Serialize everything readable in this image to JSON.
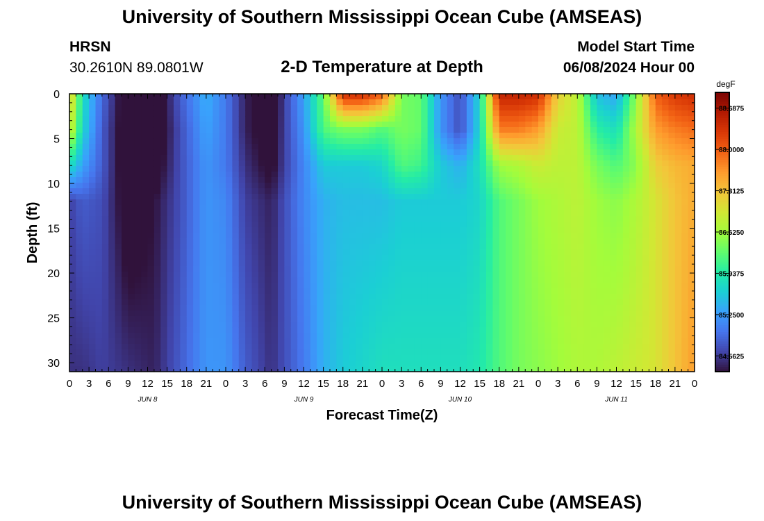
{
  "header": {
    "title": "University of Southern Mississippi Ocean Cube (AMSEAS)",
    "station": "HRSN",
    "coordinates": "30.2610N  89.0801W",
    "subtitle": "2-D Temperature at Depth",
    "model_start_label": "Model Start Time",
    "model_start_value": "06/08/2024 Hour 00"
  },
  "footer": {
    "title": "University of Southern Mississippi Ocean Cube (AMSEAS)"
  },
  "chart_data": {
    "type": "heatmap",
    "xlabel": "Forecast Time(Z)",
    "ylabel": "Depth (ft)",
    "x_tick_labels": [
      "0",
      "3",
      "6",
      "9",
      "12",
      "15",
      "18",
      "21",
      "0",
      "3",
      "6",
      "9",
      "12",
      "15",
      "18",
      "21",
      "0",
      "3",
      "6",
      "9",
      "12",
      "15",
      "18",
      "21",
      "0",
      "3",
      "6",
      "9",
      "12",
      "15",
      "18",
      "21",
      "0"
    ],
    "x_hours": [
      0,
      3,
      6,
      9,
      12,
      15,
      18,
      21,
      24,
      27,
      30,
      33,
      36,
      39,
      42,
      45,
      48,
      51,
      54,
      57,
      60,
      63,
      66,
      69,
      72,
      75,
      78,
      81,
      84,
      87,
      90,
      93,
      96
    ],
    "day_labels": [
      {
        "label": "JUN 8",
        "hour": 12
      },
      {
        "label": "JUN 9",
        "hour": 36
      },
      {
        "label": "JUN 10",
        "hour": 60
      },
      {
        "label": "JUN 11",
        "hour": 84
      }
    ],
    "y_ticks": [
      0,
      5,
      10,
      15,
      20,
      25,
      30
    ],
    "ylim": [
      0,
      31
    ],
    "xlim": [
      0,
      96
    ],
    "y_inverted": true,
    "colorbar": {
      "units": "degF",
      "tick_labels": [
        "88.6875",
        "88.0000",
        "87.3125",
        "86.6250",
        "85.9375",
        "85.2500",
        "84.5625"
      ],
      "tick_values": [
        88.6875,
        88.0,
        87.3125,
        86.625,
        85.9375,
        85.25,
        84.5625
      ],
      "range": [
        84.3,
        88.95
      ],
      "colors": [
        "#30123b",
        "#4145ab",
        "#4675ed",
        "#39a2fc",
        "#1bcfd4",
        "#24eca6",
        "#61fc6c",
        "#a4fc3b",
        "#d1e834",
        "#f3c63a",
        "#fe9b2d",
        "#f36315",
        "#d93806",
        "#b11901",
        "#7a0403"
      ]
    },
    "depth_profile": {
      "depths_ft": [
        0,
        4,
        8,
        12,
        31
      ],
      "hours": [
        0,
        2,
        5,
        9,
        13,
        17,
        21,
        24,
        27,
        31,
        33,
        36,
        39,
        42,
        45,
        48,
        51,
        54,
        57,
        60,
        63,
        66,
        69,
        72,
        75,
        78,
        81,
        84,
        87,
        90,
        93,
        96
      ],
      "values_degF": [
        [
          87.3,
          85.8,
          84.9,
          84.0,
          84.0,
          84.8,
          85.4,
          85.0,
          84.4,
          84.0,
          84.6,
          85.3,
          86.3,
          88.4,
          88.4,
          88.0,
          86.4,
          86.3,
          85.2,
          84.7,
          85.7,
          88.5,
          88.5,
          88.4,
          87.2,
          86.8,
          85.5,
          85.3,
          86.5,
          88.0,
          88.3,
          88.4
        ],
        [
          87.0,
          85.7,
          84.8,
          84.0,
          84.0,
          84.7,
          85.3,
          85.0,
          84.4,
          84.1,
          84.6,
          85.2,
          86.2,
          86.4,
          86.4,
          86.2,
          86.4,
          86.3,
          85.2,
          84.7,
          85.7,
          87.8,
          87.8,
          87.6,
          86.9,
          86.8,
          86.0,
          85.8,
          86.7,
          87.6,
          87.8,
          87.9
        ],
        [
          85.8,
          85.3,
          84.8,
          84.0,
          84.1,
          84.7,
          85.2,
          85.0,
          84.5,
          84.2,
          84.6,
          85.1,
          85.6,
          85.6,
          85.6,
          85.7,
          86.2,
          86.1,
          85.6,
          85.4,
          85.8,
          86.6,
          86.7,
          86.9,
          86.8,
          86.8,
          86.4,
          86.2,
          86.5,
          87.2,
          87.4,
          87.5
        ],
        [
          84.6,
          84.8,
          84.7,
          84.1,
          84.3,
          84.7,
          85.2,
          85.1,
          84.6,
          84.4,
          84.7,
          85.1,
          85.4,
          85.5,
          85.5,
          85.5,
          85.6,
          85.6,
          85.6,
          85.6,
          85.7,
          86.2,
          86.4,
          86.6,
          86.7,
          86.8,
          86.6,
          86.5,
          86.7,
          87.0,
          87.3,
          87.5
        ],
        [
          84.5,
          84.5,
          84.6,
          84.5,
          84.4,
          84.8,
          85.2,
          85.2,
          84.8,
          84.5,
          84.7,
          85.0,
          85.4,
          85.6,
          85.7,
          85.8,
          85.8,
          85.8,
          85.8,
          85.8,
          85.9,
          86.2,
          86.4,
          86.5,
          86.6,
          86.7,
          86.7,
          86.8,
          86.9,
          87.0,
          87.3,
          87.6
        ]
      ]
    }
  }
}
